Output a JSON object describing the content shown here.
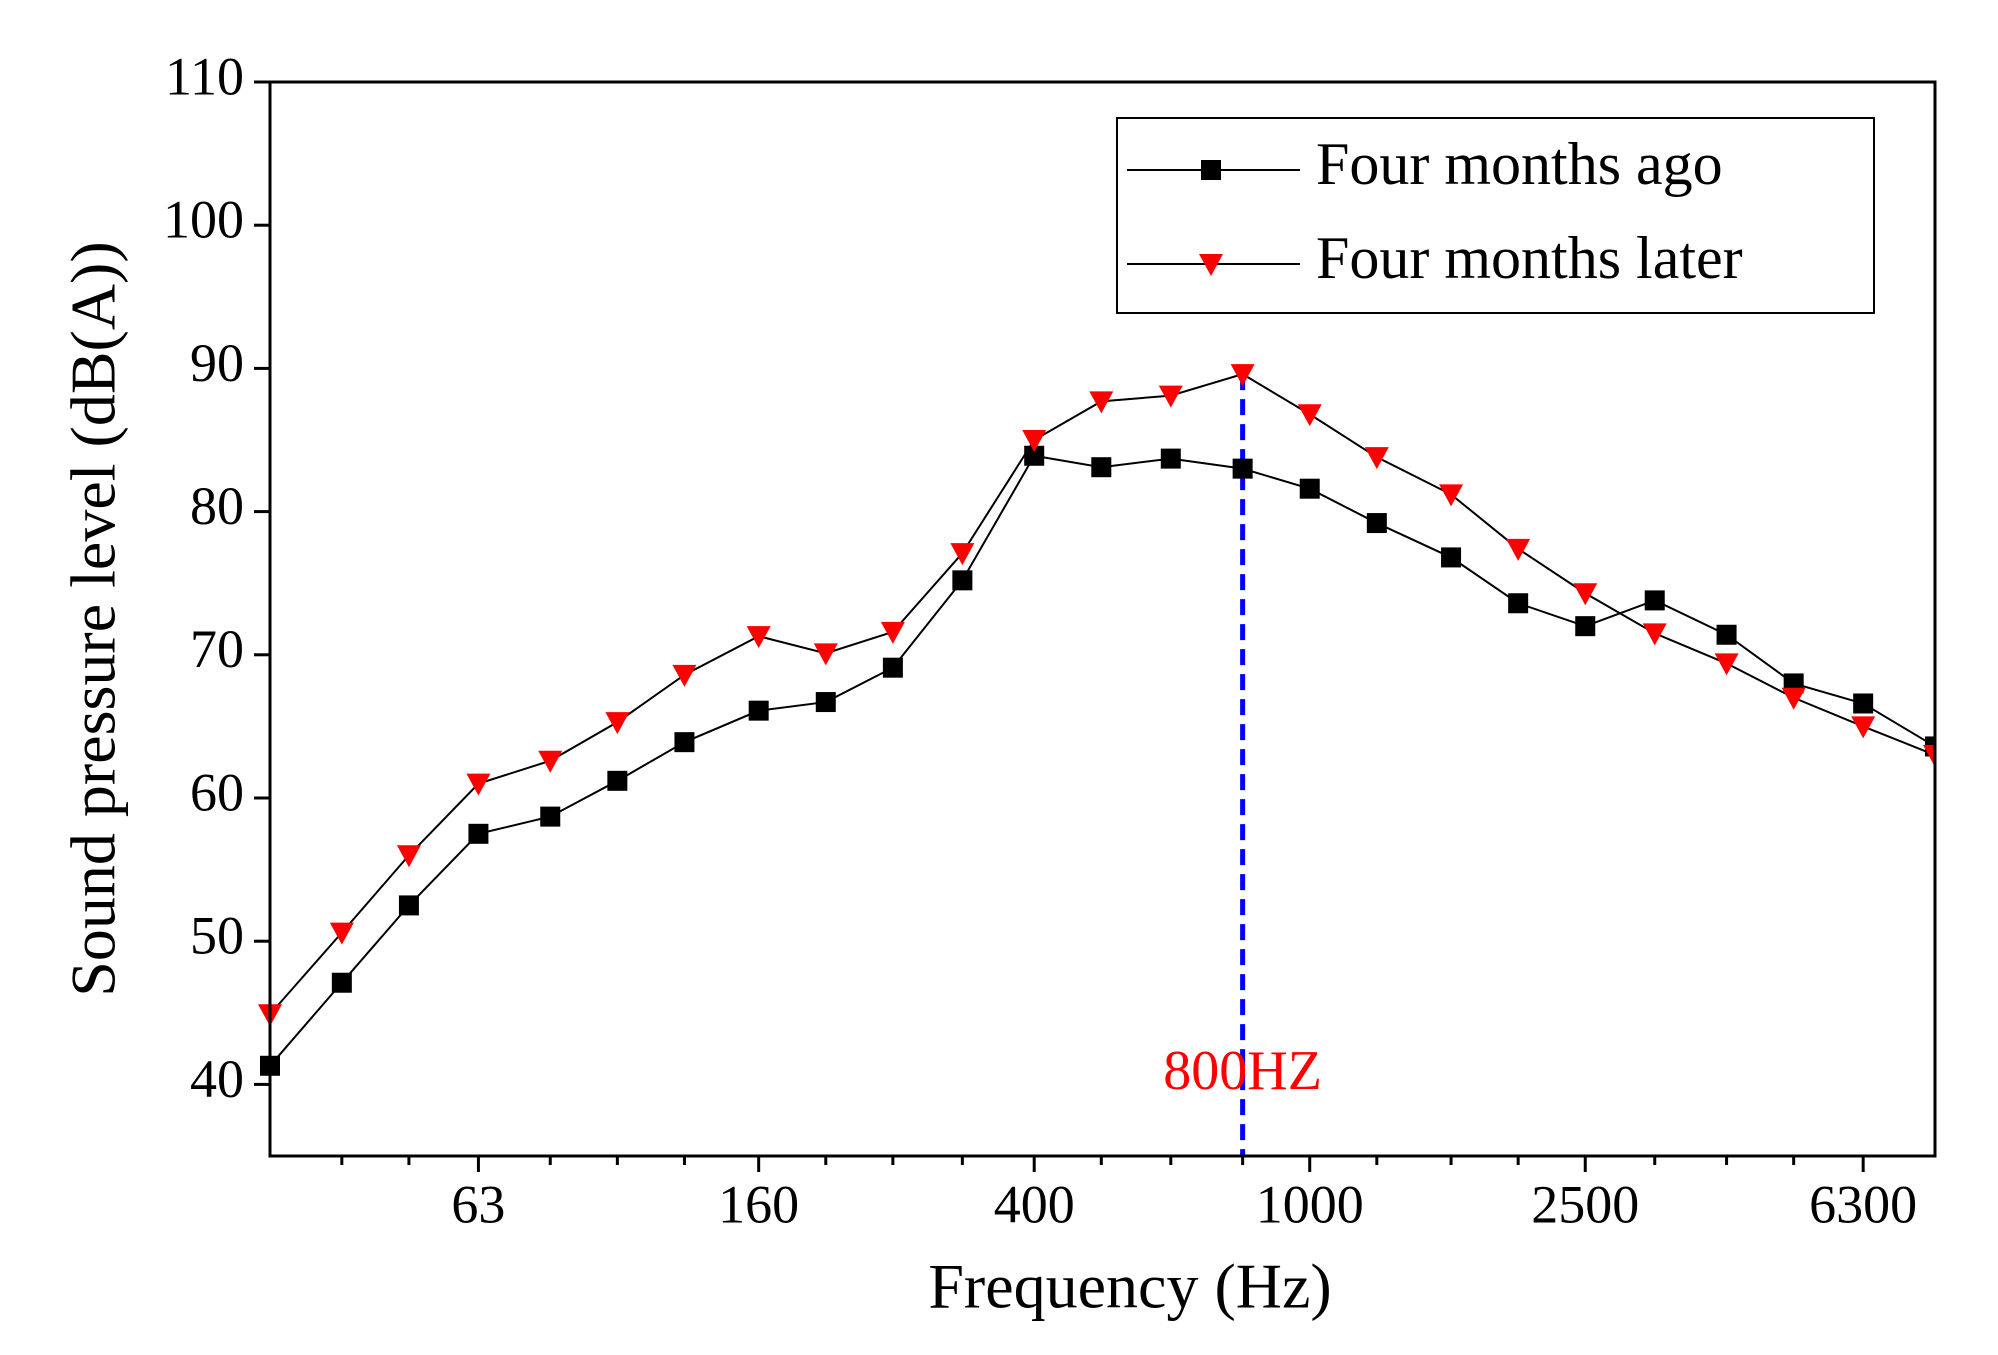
{
  "chart_data": {
    "type": "line",
    "xlabel": "Frequency (Hz)",
    "ylabel": "Sound pressure level (dB(A))",
    "x": [
      31.5,
      40,
      50,
      63,
      80,
      100,
      125,
      160,
      200,
      250,
      315,
      400,
      500,
      630,
      800,
      1000,
      1250,
      1600,
      2000,
      2500,
      3150,
      4000,
      5000,
      6300,
      8000
    ],
    "xscale": "log",
    "xlim": [
      31.5,
      8000
    ],
    "xticks": [
      63,
      160,
      400,
      1000,
      2500,
      6300
    ],
    "xminorticks": [
      40,
      50,
      80,
      100,
      125,
      200,
      250,
      315,
      500,
      630,
      800,
      1250,
      1600,
      2000,
      3150,
      4000,
      5000
    ],
    "ylim": [
      35,
      110
    ],
    "yticks": [
      40,
      50,
      60,
      70,
      80,
      90,
      100,
      110
    ],
    "legend": "upper right",
    "series": [
      {
        "name": "Four months ago",
        "color": "#000000",
        "marker": "square",
        "values": [
          41.3,
          47.1,
          52.5,
          57.5,
          58.7,
          61.2,
          63.9,
          66.1,
          66.7,
          69.1,
          75.2,
          83.9,
          83.1,
          83.7,
          83.0,
          81.6,
          79.2,
          76.8,
          73.6,
          72.0,
          73.8,
          71.4,
          68.0,
          66.6,
          63.6
        ]
      },
      {
        "name": "Four months later",
        "color": "#ff0000",
        "marker": "triangle-down",
        "values": [
          44.9,
          50.6,
          56.0,
          61.0,
          62.6,
          65.3,
          68.6,
          71.3,
          70.1,
          71.6,
          77.1,
          85.0,
          87.7,
          88.1,
          89.6,
          86.8,
          83.8,
          81.2,
          77.4,
          74.3,
          71.5,
          69.4,
          67.0,
          65.0,
          63.0
        ]
      }
    ],
    "annotation": {
      "text": "800HZ",
      "x": 800,
      "color": "#ff0000",
      "line_color": "#0000ff"
    }
  }
}
